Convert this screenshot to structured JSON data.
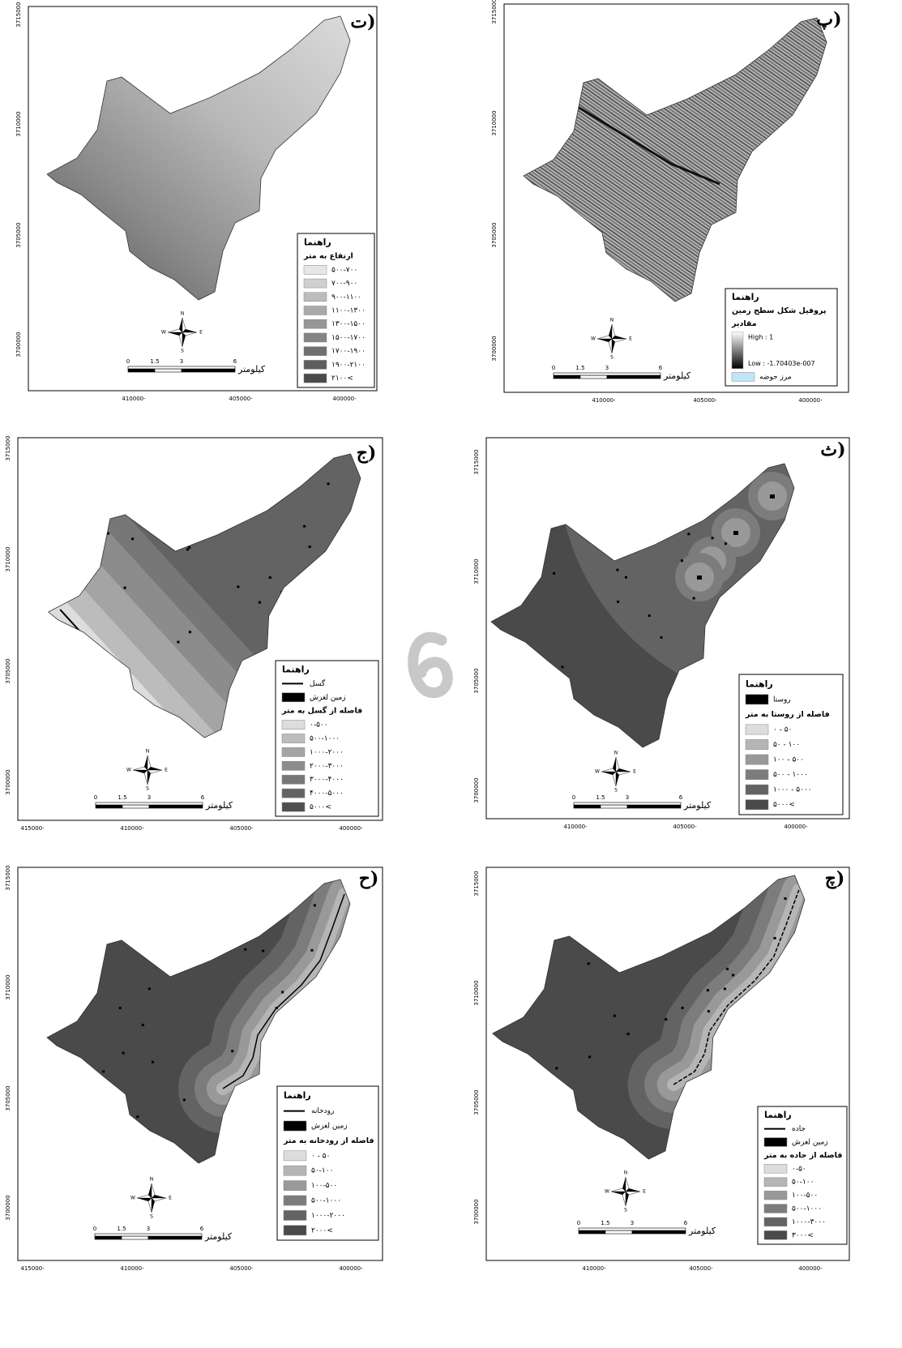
{
  "shared": {
    "scale_labels": [
      "0",
      "1.5",
      "3",
      "6"
    ],
    "scale_unit": "کیلومتر",
    "compass": [
      "N",
      "E",
      "S",
      "W"
    ]
  },
  "panels": [
    {
      "label": "ت)",
      "y_ticks": [
        "3715000",
        "3710000",
        "3705000",
        "3700000"
      ],
      "x_ticks": [
        "410000-",
        "405000-",
        "400000-"
      ],
      "legend": {
        "title": "راهنما",
        "entries": [
          {
            "text": "ارتفاع به متر"
          },
          {
            "text": "۵۰۰-۷۰۰",
            "color": "#e6e6e6"
          },
          {
            "text": "۷۰۰-۹۰۰",
            "color": "#d0d0d0"
          },
          {
            "text": "۹۰۰-۱۱۰۰",
            "color": "#bdbdbd"
          },
          {
            "text": "۱۱۰۰-۱۳۰۰",
            "color": "#aaaaaa"
          },
          {
            "text": "۱۳۰۰-۱۵۰۰",
            "color": "#969696"
          },
          {
            "text": "۱۵۰۰-۱۷۰۰",
            "color": "#848484"
          },
          {
            "text": "۱۷۰۰-۱۹۰۰",
            "color": "#707070"
          },
          {
            "text": "۱۹۰۰-۲۱۰۰",
            "color": "#5e5e5e"
          },
          {
            "text": "۲۱۰۰<",
            "color": "#4a4a4a"
          }
        ]
      }
    },
    {
      "label": "پ)",
      "y_ticks": [
        "3715000",
        "3710000",
        "3705000",
        "3700000"
      ],
      "x_ticks": [
        "410000-",
        "405000-",
        "400000-"
      ],
      "legend": {
        "title": "راهنما",
        "entries": [
          {
            "text": "پروفیل شکل سطح زمین"
          },
          {
            "text": "مقادیر"
          },
          {
            "high": "High : 1",
            "low": "Low : -1.70403e-007",
            "symbol": "ramp"
          },
          {
            "text": "مرز حوضه",
            "color": "#bfe6f7"
          }
        ]
      }
    },
    {
      "label": "ج)",
      "y_ticks": [
        "3715000",
        "3710000",
        "3705000",
        "3700000"
      ],
      "x_ticks": [
        "415000-",
        "410000-",
        "405000-",
        "400000-"
      ],
      "legend": {
        "title": "راهنما",
        "entries": [
          {
            "text": "گسل",
            "symbol": "line"
          },
          {
            "text": "زمین لغزش",
            "color": "#000000"
          },
          {
            "text": "فاصله از گسل به متر"
          },
          {
            "text": "۰-۵۰۰",
            "color": "#dddddd"
          },
          {
            "text": "۵۰۰-۱۰۰۰",
            "color": "#bcbcbc"
          },
          {
            "text": "۱۰۰۰-۲۰۰۰",
            "color": "#a4a4a4"
          },
          {
            "text": "۲۰۰۰-۳۰۰۰",
            "color": "#8c8c8c"
          },
          {
            "text": "۳۰۰۰-۴۰۰۰",
            "color": "#777777"
          },
          {
            "text": "۴۰۰۰-۵۰۰۰",
            "color": "#636363"
          },
          {
            "text": "۵۰۰۰<",
            "color": "#4f4f4f"
          }
        ]
      }
    },
    {
      "label": "ث)",
      "y_ticks": [
        "3715000",
        "3710000",
        "3705000",
        "3700000"
      ],
      "x_ticks": [
        "410000-",
        "405000-",
        "400000-"
      ],
      "legend": {
        "title": "راهنما",
        "entries": [
          {
            "text": "روستا",
            "color": "#000000"
          },
          {
            "text": "فاصله از روستا به متر"
          },
          {
            "text": "۰ - ۵۰",
            "color": "#dddddd"
          },
          {
            "text": "۵۰ - ۱۰۰",
            "color": "#b5b5b5"
          },
          {
            "text": "۱۰۰ - ۵۰۰",
            "color": "#999999"
          },
          {
            "text": "۵۰۰ - ۱۰۰۰",
            "color": "#7c7c7c"
          },
          {
            "text": "۱۰۰۰ - ۵۰۰۰",
            "color": "#636363"
          },
          {
            "text": "۵۰۰۰<",
            "color": "#4a4a4a"
          }
        ]
      }
    },
    {
      "label": "ح)",
      "y_ticks": [
        "3715000",
        "3710000",
        "3705000",
        "3700000"
      ],
      "x_ticks": [
        "415000-",
        "410000-",
        "405000-",
        "400000-"
      ],
      "legend": {
        "title": "راهنما",
        "entries": [
          {
            "text": "رودخانه",
            "symbol": "line"
          },
          {
            "text": "زمین لغزش",
            "color": "#000000"
          },
          {
            "text": "فاصله از رودخانه به متر"
          },
          {
            "text": "۰ - ۵۰",
            "color": "#dddddd"
          },
          {
            "text": "۵۰-۱۰۰",
            "color": "#b5b5b5"
          },
          {
            "text": "۱۰۰-۵۰۰",
            "color": "#999999"
          },
          {
            "text": "۵۰۰-۱۰۰۰",
            "color": "#7c7c7c"
          },
          {
            "text": "۱۰۰۰-۲۰۰۰",
            "color": "#636363"
          },
          {
            "text": "۲۰۰۰<",
            "color": "#4a4a4a"
          }
        ]
      }
    },
    {
      "label": "چ)",
      "y_ticks": [
        "3715000",
        "3710000",
        "3705000",
        "3700000"
      ],
      "x_ticks": [
        "410000-",
        "405000-",
        "400000-"
      ],
      "legend": {
        "title": "راهنما",
        "entries": [
          {
            "text": "جاده",
            "symbol": "line"
          },
          {
            "text": "زمین لغزش",
            "color": "#000000"
          },
          {
            "text": "فاصله از جاده به متر"
          },
          {
            "text": "۰-۵۰",
            "color": "#dddddd"
          },
          {
            "text": "۵۰-۱۰۰",
            "color": "#b5b5b5"
          },
          {
            "text": "۱۰۰-۵۰۰",
            "color": "#999999"
          },
          {
            "text": "۵۰۰-۱۰۰۰",
            "color": "#7c7c7c"
          },
          {
            "text": "۱۰۰۰-۳۰۰۰",
            "color": "#636363"
          },
          {
            "text": "۳۰۰۰<",
            "color": "#4a4a4a"
          }
        ]
      }
    }
  ]
}
